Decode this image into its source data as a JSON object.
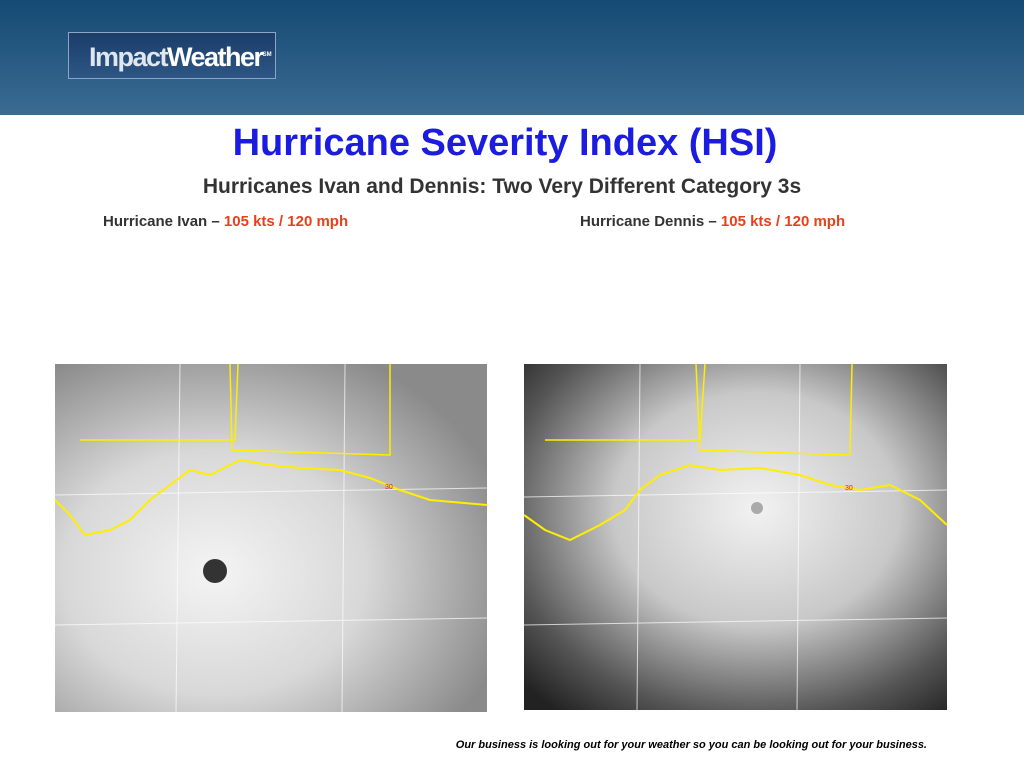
{
  "header": {
    "logo": {
      "part1": "Impact",
      "part2": "Weather",
      "mark": "SM"
    }
  },
  "title": "Hurricane Severity Index (HSI)",
  "subtitle": "Hurricanes Ivan and Dennis: Two Very Different Category 3s",
  "panels": [
    {
      "name": "Hurricane Ivan –",
      "intensity": "105 kts / 120 mph",
      "latitude_label": "30"
    },
    {
      "name": "Hurricane Dennis –",
      "intensity": "105 kts / 120 mph",
      "latitude_label": "30"
    }
  ],
  "footer": "Our business is looking out for your weather so you can be looking out for your business."
}
